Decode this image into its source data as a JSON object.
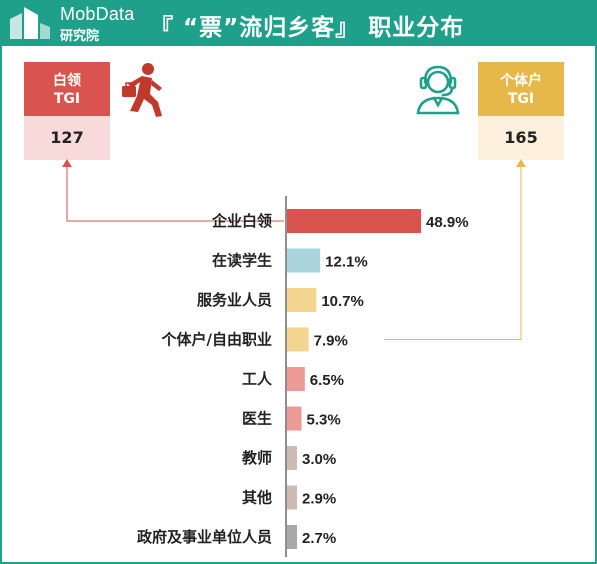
{
  "header": {
    "logo_en": "MobData",
    "logo_cn": "研究院",
    "title": "『 “票”流归乡客』 职业分布"
  },
  "tgi_left": {
    "label_line1": "白领",
    "label_line2": "TGI",
    "value": "127",
    "icon": "businessman-running-icon"
  },
  "tgi_right": {
    "label_line1": "个体户",
    "label_line2": "TGI",
    "value": "165",
    "icon": "headset-agent-icon"
  },
  "colors": {
    "brand": "#1fa08a",
    "white_collar": "#d9534f",
    "self_employed": "#e6b84a",
    "connector_left": "#d9534f",
    "connector_right": "#e6b84a"
  },
  "chart_data": {
    "type": "bar",
    "orientation": "horizontal",
    "categories": [
      "企业白领",
      "在读学生",
      "服务业人员",
      "个体户/自由职业",
      "工人",
      "医生",
      "教师",
      "其他",
      "政府及事业单位人员"
    ],
    "values": [
      48.9,
      12.1,
      10.7,
      7.9,
      6.5,
      5.3,
      3.0,
      2.9,
      2.7
    ],
    "value_labels": [
      "48.9%",
      "12.1%",
      "10.7%",
      "7.9%",
      "6.5%",
      "5.3%",
      "3.0%",
      "2.9%",
      "2.7%"
    ],
    "bar_colors": [
      "#d9534f",
      "#a9d4dc",
      "#f3d58f",
      "#f3d58f",
      "#eb9a96",
      "#eb9a96",
      "#cdbcb4",
      "#cdbcb4",
      "#a8a8a8"
    ],
    "unit": "%",
    "grid": false,
    "legend": "none"
  }
}
